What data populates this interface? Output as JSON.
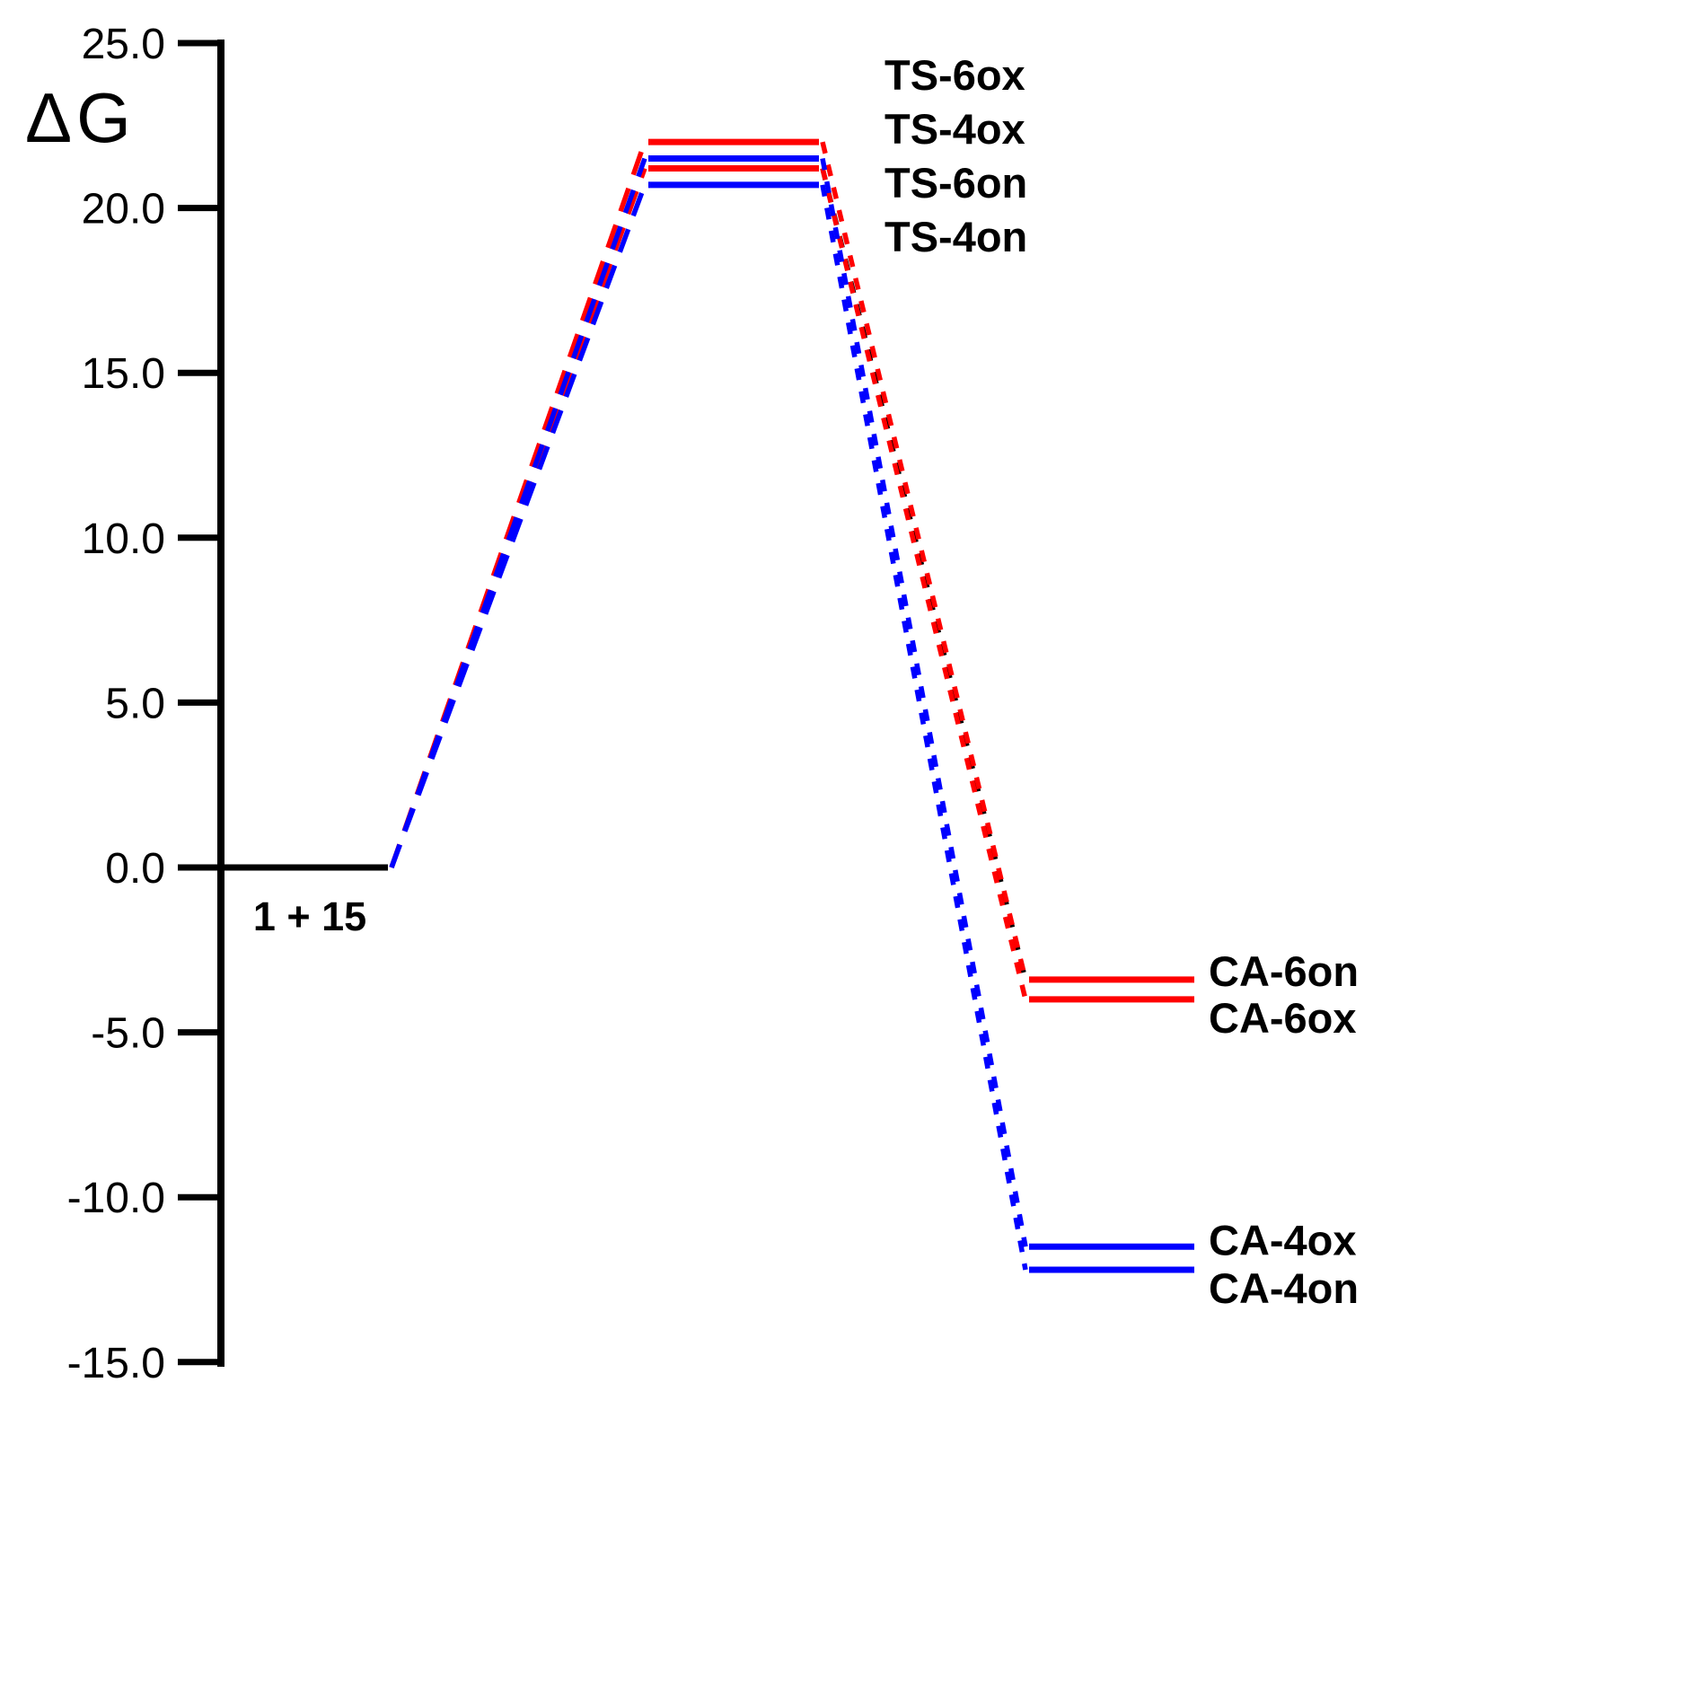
{
  "chart_data": {
    "type": "line",
    "subtype": "reaction-free-energy-profile",
    "title": "",
    "xlabel": "",
    "ylabel": "ΔG",
    "ylim": [
      -15.0,
      25.0
    ],
    "yticks": [
      25.0,
      20.0,
      15.0,
      10.0,
      5.0,
      0.0,
      -5.0,
      -10.0,
      -15.0
    ],
    "ytick_labels": [
      "25.0",
      "20.0",
      "15.0",
      "10.0",
      "5.0",
      "0.0",
      "-5.0",
      "-10.0",
      "-15.0"
    ],
    "grid": false,
    "legend": "none",
    "colors": {
      "pathway_6": "#ff0000",
      "pathway_4": "#0000ff",
      "neutral": "#000000"
    },
    "columns": {
      "reactant": [
        246,
        432
      ],
      "ts": [
        722,
        912
      ],
      "ca": [
        1146,
        1330
      ]
    },
    "levels": [
      {
        "id": "reactant",
        "label": "1 + 15",
        "energy": 0.0,
        "color": "#000000",
        "column": "reactant",
        "label_side": "below"
      },
      {
        "id": "ts-6ox",
        "label": "TS-6ox",
        "energy": 22.0,
        "color": "#ff0000",
        "column": "ts",
        "label_side": "legend"
      },
      {
        "id": "ts-4ox",
        "label": "TS-4ox",
        "energy": 21.5,
        "color": "#0000ff",
        "column": "ts",
        "label_side": "legend"
      },
      {
        "id": "ts-6on",
        "label": "TS-6on",
        "energy": 21.2,
        "color": "#ff0000",
        "column": "ts",
        "label_side": "legend"
      },
      {
        "id": "ts-4on",
        "label": "TS-4on",
        "energy": 20.7,
        "color": "#0000ff",
        "column": "ts",
        "label_side": "legend"
      },
      {
        "id": "ca-6on",
        "label": "CA-6on",
        "energy": -3.4,
        "color": "#ff0000",
        "column": "ca",
        "label_side": "right"
      },
      {
        "id": "ca-6ox",
        "label": "CA-6ox",
        "energy": -4.0,
        "color": "#ff0000",
        "column": "ca",
        "label_side": "right"
      },
      {
        "id": "ca-4ox",
        "label": "CA-4ox",
        "energy": -11.5,
        "color": "#0000ff",
        "column": "ca",
        "label_side": "right"
      },
      {
        "id": "ca-4on",
        "label": "CA-4on",
        "energy": -12.2,
        "color": "#0000ff",
        "column": "ca",
        "label_side": "right"
      }
    ],
    "connectors": [
      {
        "from": "reactant",
        "to": "ts-6ox",
        "color": "#ff0000",
        "dash": "long"
      },
      {
        "from": "reactant",
        "to": "ts-6on",
        "color": "#ff0000",
        "dash": "long"
      },
      {
        "from": "reactant",
        "to": "ts-4ox",
        "color": "#0000ff",
        "dash": "long"
      },
      {
        "from": "reactant",
        "to": "ts-4on",
        "color": "#0000ff",
        "dash": "long"
      },
      {
        "from": "ts-6on",
        "to": "ca-6on",
        "color": "#000000",
        "dash": "short"
      },
      {
        "from": "ts-6ox",
        "to": "ca-6on",
        "color": "#ff0000",
        "dash": "short"
      },
      {
        "from": "ts-6on",
        "to": "ca-6ox",
        "color": "#ff0000",
        "dash": "short"
      },
      {
        "from": "ts-4ox",
        "to": "ca-4ox",
        "color": "#0000ff",
        "dash": "short"
      },
      {
        "from": "ts-4on",
        "to": "ca-4on",
        "color": "#0000ff",
        "dash": "short"
      }
    ],
    "ts_label_order": [
      "TS-6ox",
      "TS-4ox",
      "TS-6on",
      "TS-4on"
    ]
  }
}
